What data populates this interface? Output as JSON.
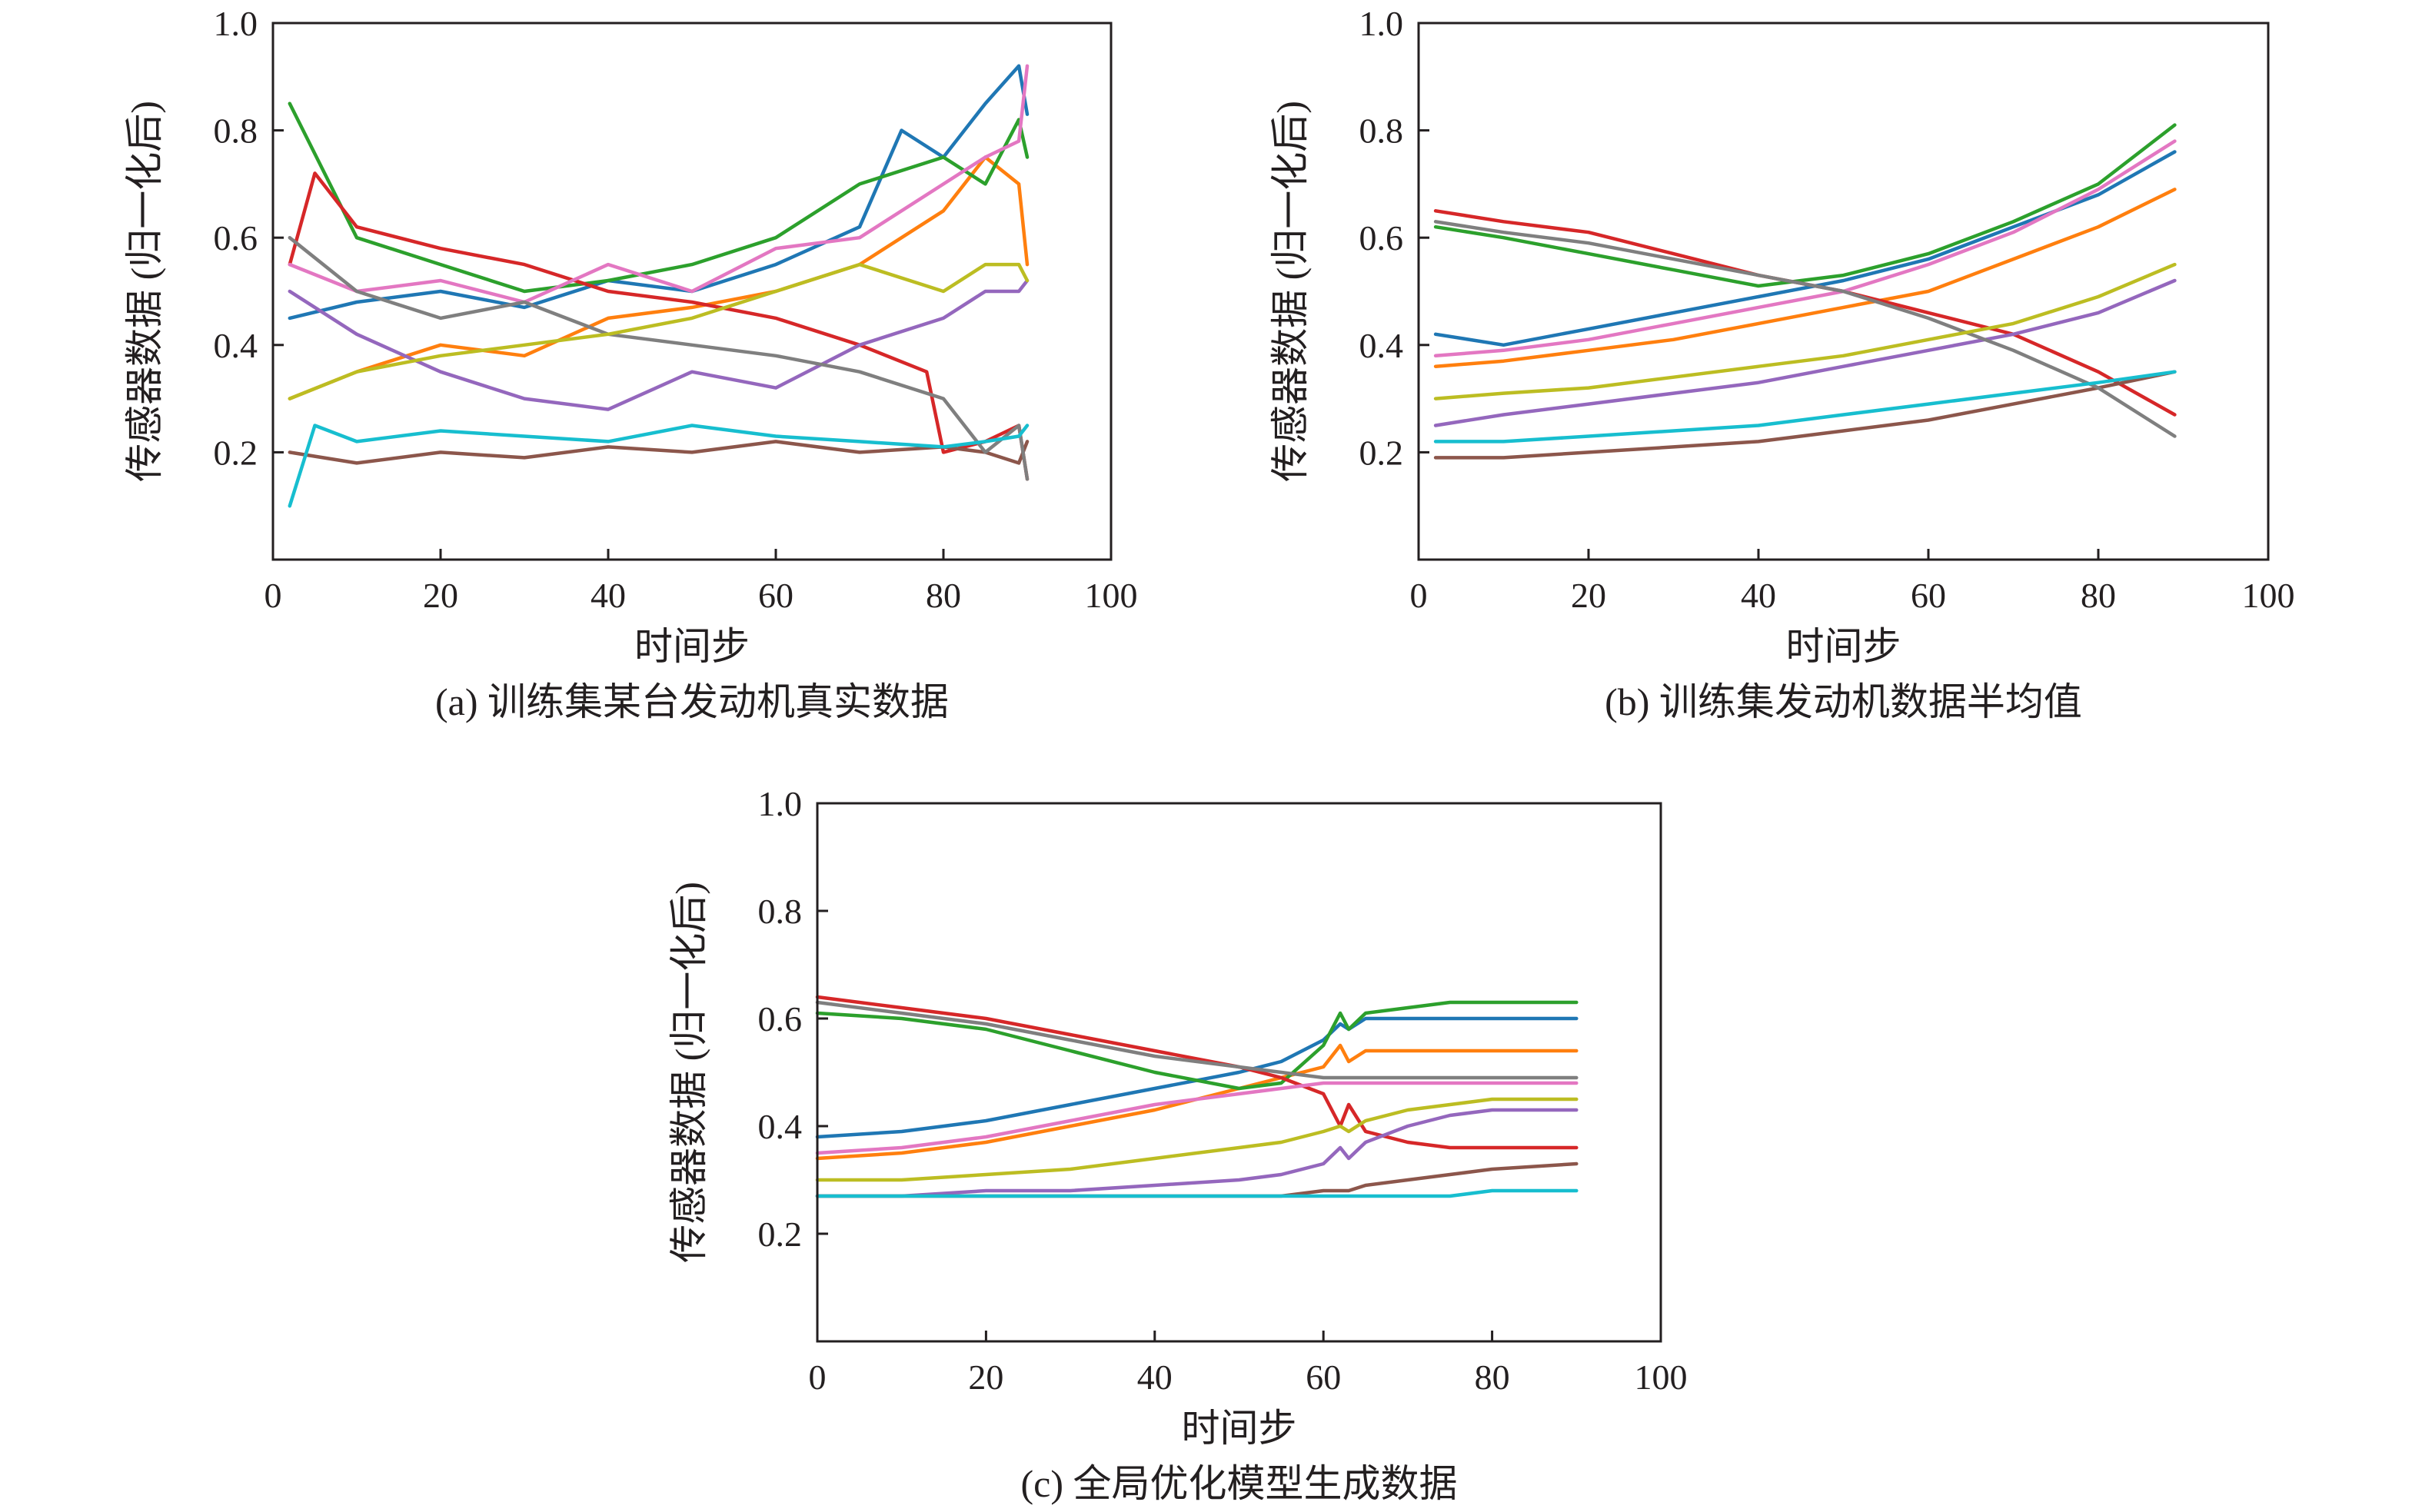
{
  "chart_data": [
    {
      "id": "a",
      "type": "line",
      "caption": "(a) 训练集某台发动机真实数据",
      "xlabel": "时间步",
      "ylabel": "传感器数据 (归一化后)",
      "xlim": [
        0,
        100
      ],
      "ylim": [
        0,
        1.0
      ],
      "xticks": [
        "0",
        "20",
        "40",
        "60",
        "80",
        "100"
      ],
      "yticks": [
        "0.2",
        "0.4",
        "0.6",
        "0.8",
        "1.0"
      ],
      "grid": false,
      "series": [
        {
          "color": "#1f77b4",
          "x": [
            2,
            10,
            20,
            30,
            40,
            50,
            60,
            70,
            75,
            80,
            85,
            89,
            90
          ],
          "y": [
            0.45,
            0.48,
            0.5,
            0.47,
            0.52,
            0.5,
            0.55,
            0.62,
            0.8,
            0.75,
            0.85,
            0.92,
            0.83
          ]
        },
        {
          "color": "#ff7f0e",
          "x": [
            2,
            10,
            20,
            30,
            40,
            50,
            60,
            70,
            80,
            85,
            89,
            90
          ],
          "y": [
            0.3,
            0.35,
            0.4,
            0.38,
            0.45,
            0.47,
            0.5,
            0.55,
            0.65,
            0.75,
            0.7,
            0.55
          ]
        },
        {
          "color": "#2ca02c",
          "x": [
            2,
            10,
            20,
            30,
            40,
            50,
            60,
            70,
            80,
            85,
            89,
            90
          ],
          "y": [
            0.85,
            0.6,
            0.55,
            0.5,
            0.52,
            0.55,
            0.6,
            0.7,
            0.75,
            0.7,
            0.82,
            0.75
          ]
        },
        {
          "color": "#d62728",
          "x": [
            2,
            5,
            10,
            20,
            30,
            40,
            50,
            60,
            70,
            78,
            80,
            85,
            89,
            90
          ],
          "y": [
            0.55,
            0.72,
            0.62,
            0.58,
            0.55,
            0.5,
            0.48,
            0.45,
            0.4,
            0.35,
            0.2,
            0.22,
            0.25,
            0.15
          ]
        },
        {
          "color": "#9467bd",
          "x": [
            2,
            10,
            20,
            30,
            40,
            50,
            60,
            70,
            80,
            85,
            89,
            90
          ],
          "y": [
            0.5,
            0.42,
            0.35,
            0.3,
            0.28,
            0.35,
            0.32,
            0.4,
            0.45,
            0.5,
            0.5,
            0.52
          ]
        },
        {
          "color": "#8c564b",
          "x": [
            2,
            10,
            20,
            30,
            40,
            50,
            60,
            70,
            80,
            85,
            89,
            90
          ],
          "y": [
            0.2,
            0.18,
            0.2,
            0.19,
            0.21,
            0.2,
            0.22,
            0.2,
            0.21,
            0.2,
            0.18,
            0.22
          ]
        },
        {
          "color": "#e377c2",
          "x": [
            2,
            10,
            20,
            30,
            40,
            50,
            60,
            70,
            80,
            85,
            89,
            90
          ],
          "y": [
            0.55,
            0.5,
            0.52,
            0.48,
            0.55,
            0.5,
            0.58,
            0.6,
            0.7,
            0.75,
            0.78,
            0.92
          ]
        },
        {
          "color": "#7f7f7f",
          "x": [
            2,
            10,
            20,
            30,
            40,
            50,
            60,
            70,
            80,
            85,
            89,
            90
          ],
          "y": [
            0.6,
            0.5,
            0.45,
            0.48,
            0.42,
            0.4,
            0.38,
            0.35,
            0.3,
            0.2,
            0.25,
            0.15
          ]
        },
        {
          "color": "#bcbd22",
          "x": [
            2,
            10,
            20,
            30,
            40,
            50,
            60,
            70,
            80,
            85,
            89,
            90
          ],
          "y": [
            0.3,
            0.35,
            0.38,
            0.4,
            0.42,
            0.45,
            0.5,
            0.55,
            0.5,
            0.55,
            0.55,
            0.52
          ]
        },
        {
          "color": "#17becf",
          "x": [
            2,
            5,
            10,
            20,
            30,
            40,
            50,
            60,
            70,
            80,
            85,
            89,
            90
          ],
          "y": [
            0.1,
            0.25,
            0.22,
            0.24,
            0.23,
            0.22,
            0.25,
            0.23,
            0.22,
            0.21,
            0.22,
            0.23,
            0.25
          ]
        }
      ]
    },
    {
      "id": "b",
      "type": "line",
      "caption": "(b) 训练集发动机数据半均值",
      "xlabel": "时间步",
      "ylabel": "传感器数据 (归一化后)",
      "xlim": [
        0,
        100
      ],
      "ylim": [
        0,
        1.0
      ],
      "xticks": [
        "0",
        "20",
        "40",
        "60",
        "80",
        "100"
      ],
      "yticks": [
        "0.2",
        "0.4",
        "0.6",
        "0.8",
        "1.0"
      ],
      "grid": false,
      "series": [
        {
          "color": "#1f77b4",
          "x": [
            2,
            10,
            20,
            30,
            40,
            50,
            60,
            70,
            80,
            89
          ],
          "y": [
            0.42,
            0.4,
            0.43,
            0.46,
            0.49,
            0.52,
            0.56,
            0.62,
            0.68,
            0.76
          ]
        },
        {
          "color": "#ff7f0e",
          "x": [
            2,
            10,
            20,
            30,
            40,
            50,
            60,
            70,
            80,
            89
          ],
          "y": [
            0.36,
            0.37,
            0.39,
            0.41,
            0.44,
            0.47,
            0.5,
            0.56,
            0.62,
            0.69
          ]
        },
        {
          "color": "#2ca02c",
          "x": [
            2,
            10,
            20,
            30,
            40,
            50,
            60,
            70,
            80,
            89
          ],
          "y": [
            0.62,
            0.6,
            0.57,
            0.54,
            0.51,
            0.53,
            0.57,
            0.63,
            0.7,
            0.81
          ]
        },
        {
          "color": "#d62728",
          "x": [
            2,
            10,
            20,
            30,
            40,
            50,
            60,
            70,
            80,
            89
          ],
          "y": [
            0.65,
            0.63,
            0.61,
            0.57,
            0.53,
            0.5,
            0.46,
            0.42,
            0.35,
            0.27
          ]
        },
        {
          "color": "#9467bd",
          "x": [
            2,
            10,
            20,
            30,
            40,
            50,
            60,
            70,
            80,
            89
          ],
          "y": [
            0.25,
            0.27,
            0.29,
            0.31,
            0.33,
            0.36,
            0.39,
            0.42,
            0.46,
            0.52
          ]
        },
        {
          "color": "#8c564b",
          "x": [
            2,
            10,
            20,
            30,
            40,
            50,
            60,
            70,
            80,
            89
          ],
          "y": [
            0.19,
            0.19,
            0.2,
            0.21,
            0.22,
            0.24,
            0.26,
            0.29,
            0.32,
            0.35
          ]
        },
        {
          "color": "#e377c2",
          "x": [
            2,
            10,
            20,
            30,
            40,
            50,
            60,
            70,
            80,
            89
          ],
          "y": [
            0.38,
            0.39,
            0.41,
            0.44,
            0.47,
            0.5,
            0.55,
            0.61,
            0.69,
            0.78
          ]
        },
        {
          "color": "#7f7f7f",
          "x": [
            2,
            10,
            20,
            30,
            40,
            50,
            60,
            70,
            80,
            89
          ],
          "y": [
            0.63,
            0.61,
            0.59,
            0.56,
            0.53,
            0.5,
            0.45,
            0.39,
            0.32,
            0.23
          ]
        },
        {
          "color": "#bcbd22",
          "x": [
            2,
            10,
            20,
            30,
            40,
            50,
            60,
            70,
            80,
            89
          ],
          "y": [
            0.3,
            0.31,
            0.32,
            0.34,
            0.36,
            0.38,
            0.41,
            0.44,
            0.49,
            0.55
          ]
        },
        {
          "color": "#17becf",
          "x": [
            2,
            10,
            20,
            30,
            40,
            50,
            60,
            70,
            80,
            89
          ],
          "y": [
            0.22,
            0.22,
            0.23,
            0.24,
            0.25,
            0.27,
            0.29,
            0.31,
            0.33,
            0.35
          ]
        }
      ]
    },
    {
      "id": "c",
      "type": "line",
      "caption": "(c) 全局优化模型生成数据",
      "xlabel": "时间步",
      "ylabel": "传感器数据 (归一化后)",
      "xlim": [
        0,
        100
      ],
      "ylim": [
        0,
        1.0
      ],
      "xticks": [
        "0",
        "20",
        "40",
        "60",
        "80",
        "100"
      ],
      "yticks": [
        "0.2",
        "0.4",
        "0.6",
        "0.8",
        "1.0"
      ],
      "grid": false,
      "series": [
        {
          "color": "#1f77b4",
          "x": [
            0,
            10,
            20,
            30,
            40,
            50,
            55,
            60,
            62,
            63,
            65,
            70,
            75,
            80,
            90
          ],
          "y": [
            0.38,
            0.39,
            0.41,
            0.44,
            0.47,
            0.5,
            0.52,
            0.56,
            0.59,
            0.58,
            0.6,
            0.6,
            0.6,
            0.6,
            0.6
          ]
        },
        {
          "color": "#ff7f0e",
          "x": [
            0,
            10,
            20,
            30,
            40,
            50,
            55,
            60,
            62,
            63,
            65,
            70,
            75,
            80,
            90
          ],
          "y": [
            0.34,
            0.35,
            0.37,
            0.4,
            0.43,
            0.47,
            0.49,
            0.51,
            0.55,
            0.52,
            0.54,
            0.54,
            0.54,
            0.54,
            0.54
          ]
        },
        {
          "color": "#2ca02c",
          "x": [
            0,
            10,
            20,
            30,
            40,
            50,
            55,
            60,
            62,
            63,
            65,
            70,
            75,
            80,
            90
          ],
          "y": [
            0.61,
            0.6,
            0.58,
            0.54,
            0.5,
            0.47,
            0.48,
            0.55,
            0.61,
            0.58,
            0.61,
            0.62,
            0.63,
            0.63,
            0.63
          ]
        },
        {
          "color": "#d62728",
          "x": [
            0,
            10,
            20,
            30,
            40,
            50,
            55,
            60,
            62,
            63,
            65,
            70,
            75,
            80,
            90
          ],
          "y": [
            0.64,
            0.62,
            0.6,
            0.57,
            0.54,
            0.51,
            0.49,
            0.46,
            0.4,
            0.44,
            0.39,
            0.37,
            0.36,
            0.36,
            0.36
          ]
        },
        {
          "color": "#9467bd",
          "x": [
            0,
            10,
            20,
            30,
            40,
            50,
            55,
            60,
            62,
            63,
            65,
            70,
            75,
            80,
            90
          ],
          "y": [
            0.27,
            0.27,
            0.28,
            0.28,
            0.29,
            0.3,
            0.31,
            0.33,
            0.36,
            0.34,
            0.37,
            0.4,
            0.42,
            0.43,
            0.43
          ]
        },
        {
          "color": "#8c564b",
          "x": [
            0,
            10,
            20,
            30,
            40,
            50,
            55,
            60,
            62,
            63,
            65,
            70,
            75,
            80,
            90
          ],
          "y": [
            0.27,
            0.27,
            0.27,
            0.27,
            0.27,
            0.27,
            0.27,
            0.28,
            0.28,
            0.28,
            0.29,
            0.3,
            0.31,
            0.32,
            0.33
          ]
        },
        {
          "color": "#e377c2",
          "x": [
            0,
            10,
            20,
            30,
            40,
            50,
            55,
            60,
            62,
            63,
            65,
            70,
            75,
            80,
            90
          ],
          "y": [
            0.35,
            0.36,
            0.38,
            0.41,
            0.44,
            0.46,
            0.47,
            0.48,
            0.48,
            0.48,
            0.48,
            0.48,
            0.48,
            0.48,
            0.48
          ]
        },
        {
          "color": "#7f7f7f",
          "x": [
            0,
            10,
            20,
            30,
            40,
            50,
            55,
            60,
            62,
            63,
            65,
            70,
            75,
            80,
            90
          ],
          "y": [
            0.63,
            0.61,
            0.59,
            0.56,
            0.53,
            0.51,
            0.5,
            0.49,
            0.49,
            0.49,
            0.49,
            0.49,
            0.49,
            0.49,
            0.49
          ]
        },
        {
          "color": "#bcbd22",
          "x": [
            0,
            10,
            20,
            30,
            40,
            50,
            55,
            60,
            62,
            63,
            65,
            70,
            75,
            80,
            90
          ],
          "y": [
            0.3,
            0.3,
            0.31,
            0.32,
            0.34,
            0.36,
            0.37,
            0.39,
            0.4,
            0.39,
            0.41,
            0.43,
            0.44,
            0.45,
            0.45
          ]
        },
        {
          "color": "#17becf",
          "x": [
            0,
            10,
            20,
            30,
            40,
            50,
            55,
            60,
            62,
            63,
            65,
            70,
            75,
            80,
            90
          ],
          "y": [
            0.27,
            0.27,
            0.27,
            0.27,
            0.27,
            0.27,
            0.27,
            0.27,
            0.27,
            0.27,
            0.27,
            0.27,
            0.27,
            0.28,
            0.28
          ]
        }
      ]
    }
  ]
}
